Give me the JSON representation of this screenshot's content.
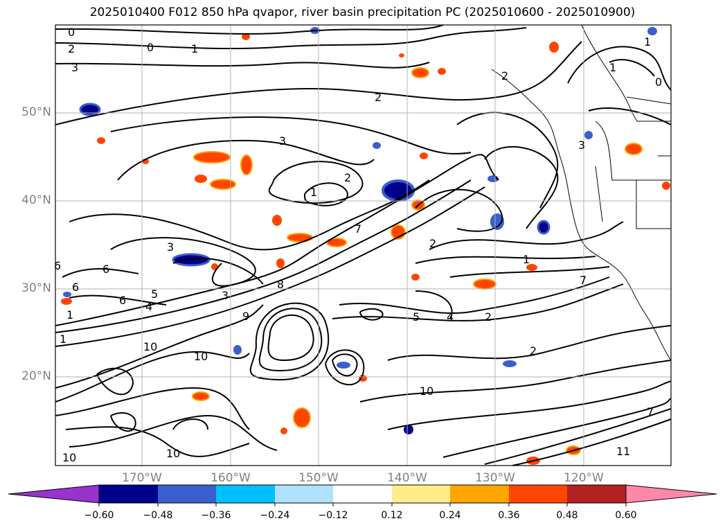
{
  "title": "2025010400 F012 850 hPa qvapor, river basin precipitation PC (2025010600 - 2025010900)",
  "lat_labels": [
    {
      "text": "50°N",
      "lat": 50
    },
    {
      "text": "40°N",
      "lat": 40
    },
    {
      "text": "30°N",
      "lat": 30
    },
    {
      "text": "20°N",
      "lat": 20
    }
  ],
  "lon_labels": [
    {
      "text": "170°W",
      "lon": -170
    },
    {
      "text": "160°W",
      "lon": -160
    },
    {
      "text": "150°W",
      "lon": -150
    },
    {
      "text": "140°W",
      "lon": -140
    },
    {
      "text": "130°W",
      "lon": -130
    },
    {
      "text": "120°W",
      "lon": -120
    }
  ],
  "colorbar": {
    "ticks": [
      "−0.60",
      "−0.48",
      "−0.36",
      "−0.24",
      "−0.12",
      "0.12",
      "0.24",
      "0.36",
      "0.48",
      "0.60"
    ],
    "colors": [
      "#9933cc",
      "#00008b",
      "#3a5fcd",
      "#00bfff",
      "#b0e2ff",
      "#ffffff",
      "#ffec8b",
      "#ffa500",
      "#ff4500",
      "#b22222",
      "#ff88aa"
    ]
  },
  "contour_labels": [
    "0",
    "2",
    "3",
    "0",
    "1",
    "3",
    "1",
    "2",
    "2",
    "3",
    "3",
    "6",
    "6",
    "6",
    "6",
    "5",
    "4",
    "1",
    "1",
    "10",
    "9",
    "10",
    "8",
    "7",
    "2",
    "5",
    "4",
    "2",
    "2",
    "1",
    "10",
    "11",
    "7",
    "10",
    "10",
    "1",
    "0",
    "2",
    "7",
    "3",
    "1"
  ],
  "colors": {
    "grid": "#b0b0b0",
    "contour": "#000000",
    "axis_text": "#808080"
  }
}
